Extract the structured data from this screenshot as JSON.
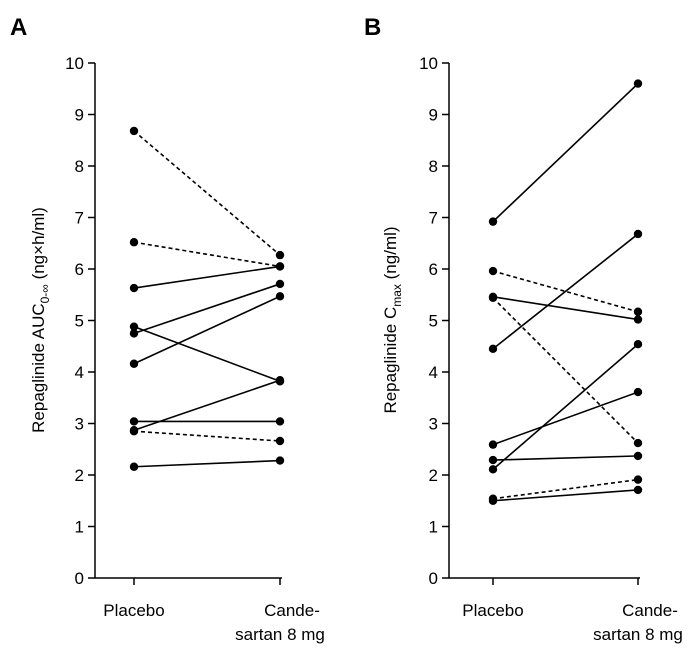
{
  "chart_data": [
    {
      "type": "line",
      "panel": "A",
      "ylabel": "Repaglinide AUC0-∞ (ng×h/ml)",
      "ylabel_main": "Repaglinide AUC",
      "ylabel_sub": "0-∞",
      "ylabel_tail": " (ng×h/ml)",
      "ylim": [
        0,
        10
      ],
      "yticks": [
        "0",
        "1",
        "2",
        "3",
        "4",
        "5",
        "6",
        "7",
        "8",
        "9",
        "10"
      ],
      "categories": [
        {
          "line1": "Placebo",
          "line2": ""
        },
        {
          "line1": "Cande-",
          "line2": "sartan 8 mg"
        }
      ],
      "series": [
        {
          "values": [
            8.68,
            6.27
          ],
          "style": "dashed"
        },
        {
          "values": [
            6.52,
            6.05
          ],
          "style": "dashed"
        },
        {
          "values": [
            5.63,
            6.05
          ],
          "style": "solid"
        },
        {
          "values": [
            4.88,
            3.82
          ],
          "style": "solid"
        },
        {
          "values": [
            4.75,
            5.71
          ],
          "style": "solid"
        },
        {
          "values": [
            4.16,
            5.47
          ],
          "style": "solid"
        },
        {
          "values": [
            3.04,
            3.04
          ],
          "style": "solid"
        },
        {
          "values": [
            2.87,
            3.84
          ],
          "style": "solid"
        },
        {
          "values": [
            2.85,
            2.66
          ],
          "style": "dashed"
        },
        {
          "values": [
            2.16,
            2.28
          ],
          "style": "solid"
        }
      ]
    },
    {
      "type": "line",
      "panel": "B",
      "ylabel": "Repaglinide Cmax (ng/ml)",
      "ylabel_main": "Repaglinide C",
      "ylabel_sub": "max",
      "ylabel_tail": " (ng/ml)",
      "ylim": [
        0,
        10
      ],
      "yticks": [
        "0",
        "1",
        "2",
        "3",
        "4",
        "5",
        "6",
        "7",
        "8",
        "9",
        "10"
      ],
      "categories": [
        {
          "line1": "Placebo",
          "line2": ""
        },
        {
          "line1": "Cande-",
          "line2": "sartan 8 mg"
        }
      ],
      "series": [
        {
          "values": [
            6.92,
            9.6
          ],
          "style": "solid"
        },
        {
          "values": [
            5.96,
            5.17
          ],
          "style": "dashed"
        },
        {
          "values": [
            5.46,
            5.02
          ],
          "style": "solid"
        },
        {
          "values": [
            5.44,
            2.62
          ],
          "style": "dashed"
        },
        {
          "values": [
            4.45,
            6.68
          ],
          "style": "solid"
        },
        {
          "values": [
            2.59,
            3.61
          ],
          "style": "solid"
        },
        {
          "values": [
            2.29,
            2.37
          ],
          "style": "solid"
        },
        {
          "values": [
            2.11,
            4.54
          ],
          "style": "solid"
        },
        {
          "values": [
            1.54,
            1.91
          ],
          "style": "dashed"
        },
        {
          "values": [
            1.5,
            1.71
          ],
          "style": "solid"
        }
      ]
    }
  ]
}
